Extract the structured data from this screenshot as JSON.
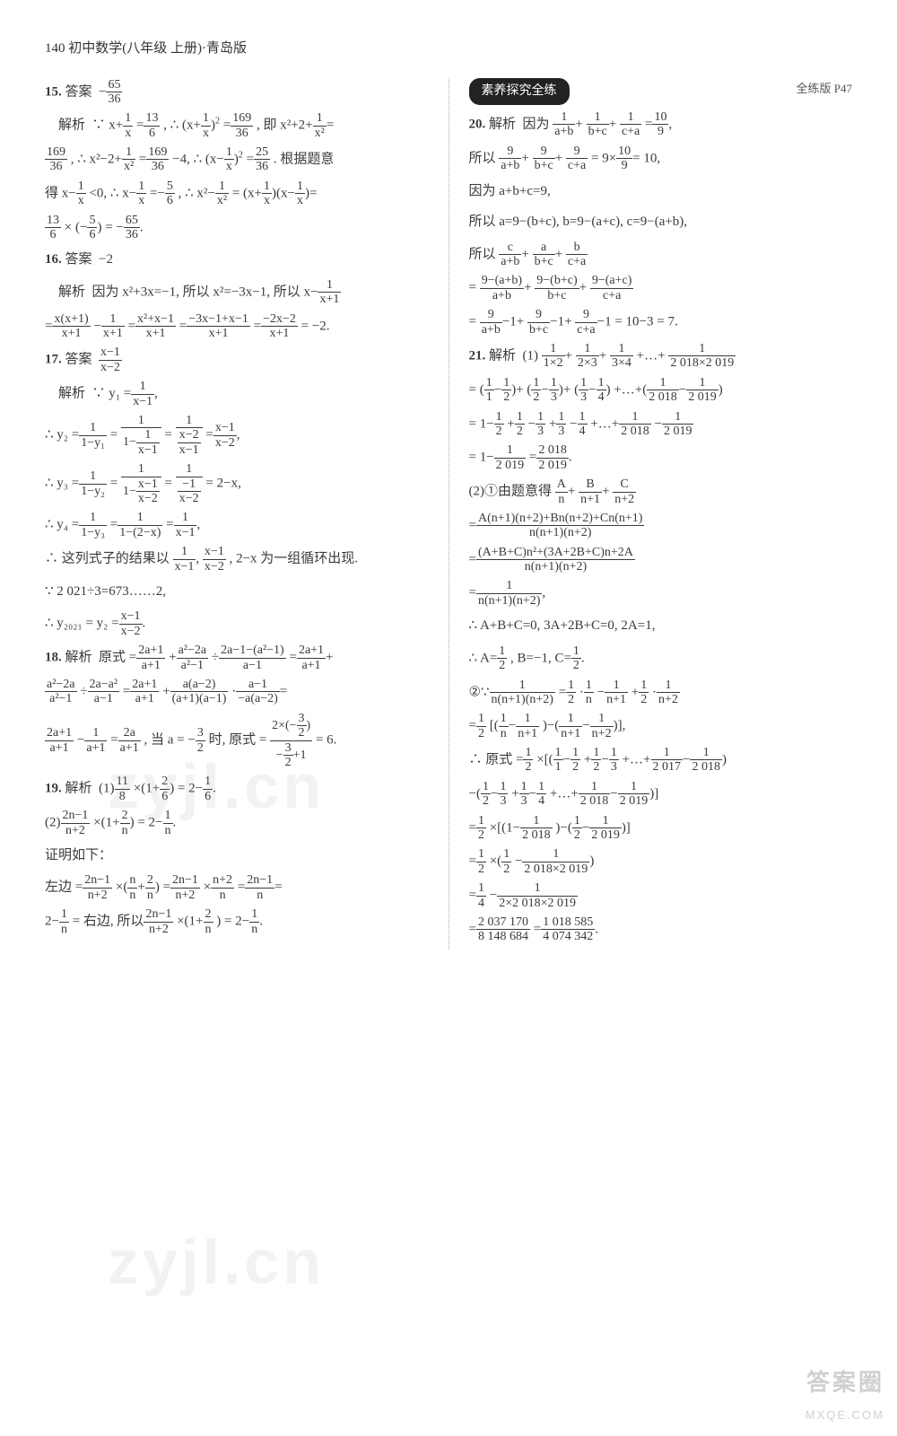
{
  "header": "140 初中数学(八年级 上册)·青岛版",
  "colors": {
    "text": "#3a3a3a",
    "bg": "#ffffff",
    "divider": "#aaaaaa",
    "badge_bg": "#222222",
    "badge_fg": "#ffffff",
    "wm": "rgba(150,150,150,0.12)"
  },
  "left": {
    "q15": {
      "num": "15.",
      "ans_label": "答案",
      "ans_val_n": "65",
      "ans_val_d": "36",
      "ans_sign": "−",
      "jx": "解析",
      "l1a": "∵ x+",
      "l1b": "=",
      "l1c": ", ∴",
      "l1d": "=",
      "l1e": ", 即 x²+2+",
      "f1n": "1",
      "f1d": "x",
      "f2n": "13",
      "f2d": "6",
      "f3a": "(x+",
      "f3b": ")",
      "f3n": "1",
      "f3d": "x",
      "f3sup": "2",
      "f4n": "169",
      "f4d": "36",
      "f5n": "1",
      "f5d": "x²",
      "eq": "=",
      "l2a": ", ∴ x²−2+",
      "l2b": "=",
      "l2c": "−4, ∴",
      "l2d": "=",
      "l2e": ". 根据题意",
      "f6n": "169",
      "f6d": "36",
      "f7n": "1",
      "f7d": "x²",
      "f8n": "169",
      "f8d": "36",
      "f9a": "(x−",
      "f9b": ")",
      "f9n": "1",
      "f9d": "x",
      "f9sup": "2",
      "f10n": "25",
      "f10d": "36",
      "l3a": "得 x−",
      "l3b": "<0, ∴ x−",
      "l3c": "=−",
      "l3d": ", ∴ x²−",
      "l3e": "=",
      "l3f": "=",
      "f11n": "1",
      "f11d": "x",
      "f12n": "1",
      "f12d": "x",
      "f13n": "5",
      "f13d": "6",
      "f14n": "1",
      "f14d": "x²",
      "f15a": "(x+",
      "f15b": ")(x−",
      "f15c": ")",
      "f15n1": "1",
      "f15d1": "x",
      "f15n2": "1",
      "f15d2": "x",
      "l4a": "×",
      "l4b": "= −",
      "l4c": ".",
      "f16n": "13",
      "f16d": "6",
      "f17a": "(−",
      "f17b": ")",
      "f17n": "5",
      "f17d": "6",
      "f18n": "65",
      "f18d": "36"
    },
    "q16": {
      "num": "16.",
      "ans_label": "答案",
      "ans_val": "−2",
      "jx": "解析",
      "l1": "因为 x²+3x=−1, 所以 x²=−3x−1, 所以 x−",
      "f1n": "1",
      "f1d": "x+1",
      "l2a": "=",
      "l2b": "−",
      "l2c": "=",
      "l2d": "=",
      "l2e": "=",
      "l2f": "= −2.",
      "f2n": "x(x+1)",
      "f2d": "x+1",
      "f3n": "1",
      "f3d": "x+1",
      "f4n": "x²+x−1",
      "f4d": "x+1",
      "f5n": "−3x−1+x−1",
      "f5d": "x+1",
      "f6n": "−2x−2",
      "f6d": "x+1"
    },
    "q17": {
      "num": "17.",
      "ans_label": "答案",
      "jx": "解析",
      "ansn": "x−1",
      "ansd": "x−2",
      "l1": "∵ y₁ =",
      "f1n": "1",
      "f1d": "x−1",
      "comma": ",",
      "l2": "∴ y₂ =",
      "f2n": "1",
      "f2d": "1−y₁",
      "eq": "=",
      "f3top": "1",
      "f3b1": "1−",
      "f3n": "1",
      "f3d": "x−1",
      "f4top": "1",
      "f4n": "x−2",
      "f4d": "x−1",
      "f5n": "x−1",
      "f5d": "x−2",
      "l3": "∴ y₃ =",
      "f6n": "1",
      "f6d": "1−y₂",
      "f7top": "1",
      "f7b1": "1−",
      "f7n": "x−1",
      "f7d": "x−2",
      "f8top": "1",
      "f8n": "−1",
      "f8d": "x−2",
      "r3": "= 2−x,",
      "l4": "∴ y₄ =",
      "f9n": "1",
      "f9d": "1−y₃",
      "f10n": "1",
      "f10d": "1−(2−x)",
      "f11n": "1",
      "f11d": "x−1",
      "l5": "∴ 这列式子的结果以",
      "seq": ",",
      "tail": ", 2−x 为一组循环出现.",
      "l6": "∵ 2 021÷3=673……2,",
      "l7": "∴ y₂₀₂₁ = y₂ =",
      "f12n": "x−1",
      "f12d": "x−2",
      "dot": "."
    },
    "q18": {
      "num": "18.",
      "jx": "解析",
      "l1": "原式 =",
      "plus": "+",
      "l2": "÷",
      "l3": "=",
      "l4": "÷",
      "l5a": "·",
      "l5": "=",
      "f1n": "2a+1",
      "f1d": "a+1",
      "f2n": "a²−2a",
      "f2d": "a²−1",
      "f3n": "2a−1−(a²−1)",
      "f3d": "a−1",
      "f4n": "2a+1",
      "f4d": "a+1",
      "f5n": "a²−2a",
      "f5d": "a²−1",
      "f6n": "2a−a²",
      "f6d": "a−1",
      "f7n": "2a+1",
      "f7d": "a+1",
      "f8n": "a(a−2)",
      "f8d": "(a+1)(a−1)",
      "f9n": "a−1",
      "f9d": "−a(a−2)",
      "f10n": "2a+1",
      "f10d": "a+1",
      "f11n": "1",
      "f11d": "a+1",
      "f12n": "2a",
      "f12d": "a+1",
      "mid": ", 当 a = −",
      "fan": "3",
      "fad": "2",
      "mid2": "时, 原式 =",
      "ft1": "2×(−",
      "ftn": "3",
      "ftd": "2",
      "ft2": ")",
      "fbn": "3",
      "fbd": "2",
      "fb1": "−",
      "fb2": "+1",
      "res": "= 6."
    },
    "q19": {
      "num": "19.",
      "jx": "解析",
      "p1": "(1)",
      "f1n": "11",
      "f1d": "8",
      "x": "×",
      "lp": "(1+",
      "f2n": "2",
      "f2d": "6",
      "rp": ")",
      "eq": "= 2−",
      "f3n": "1",
      "f3d": "6",
      "dot": ".",
      "p2": "(2)",
      "f4n": "2n−1",
      "f4d": "n+2",
      "f5n": "2",
      "f5d": "n",
      "eq2": "= 2−",
      "f6n": "1",
      "f6d": "n",
      "prf": "证明如下：",
      "lhs": "左边 =",
      "f7n": "2n−1",
      "f7d": "n+2",
      "m1": "×",
      "lp2": "(",
      "f8n": "n",
      "f8d": "n",
      "pl": "+",
      "f9n": "2",
      "f9d": "n",
      "rp2": ")",
      "e1": "=",
      "f10n": "2n−1",
      "f10d": "n+2",
      "m2": "×",
      "f11n": "n+2",
      "f11d": "n",
      "e2": "=",
      "f12n": "2n−1",
      "f12d": "n",
      "e3": "=",
      "rhs": "2−",
      "f13n": "1",
      "f13d": "n",
      "tail": "= 右边, 所以",
      "f14n": "2n−1",
      "f14d": "n+2",
      "lp3": "×(1+",
      "f15n": "2",
      "f15d": "n",
      "rp3": ") = 2−",
      "f16n": "1",
      "f16d": "n"
    }
  },
  "right": {
    "badge": "素养探究全练",
    "ref": "全练版 P47",
    "q20": {
      "num": "20.",
      "jx": "解析",
      "l1": "因为",
      "f1n": "1",
      "f1d": "a+b",
      "p": "+",
      "f2n": "1",
      "f2d": "b+c",
      "f3n": "1",
      "f3d": "c+a",
      "eq": "=",
      "f4n": "10",
      "f4d": "9",
      "c": ",",
      "l2": "所以",
      "f5n": "9",
      "f5d": "a+b",
      "f6n": "9",
      "f6d": "b+c",
      "f7n": "9",
      "f7d": "c+a",
      "e2": "= 9×",
      "f8n": "10",
      "f8d": "9",
      "r2": "= 10,",
      "l3": "因为 a+b+c=9,",
      "l4": "所以 a=9−(b+c), b=9−(a+c), c=9−(a+b),",
      "l5": "所以",
      "f9n": "c",
      "f9d": "a+b",
      "f10n": "a",
      "f10d": "b+c",
      "f11n": "b",
      "f11d": "c+a",
      "l6": "=",
      "f12n": "9−(a+b)",
      "f12d": "a+b",
      "f13n": "9−(b+c)",
      "f13d": "b+c",
      "f14n": "9−(a+c)",
      "f14d": "c+a",
      "l7": "=",
      "f15n": "9",
      "f15d": "a+b",
      "m1": "−1+",
      "f16n": "9",
      "f16d": "b+c",
      "f17n": "9",
      "f17d": "c+a",
      "r7": "−1 = 10−3 = 7."
    },
    "q21": {
      "num": "21.",
      "jx": "解析",
      "p1": "(1)",
      "f1n": "1",
      "f1d": "1×2",
      "p": "+",
      "f2n": "1",
      "f2d": "2×3",
      "f3n": "1",
      "f3d": "3×4",
      "dots": "+…+",
      "f4n": "1",
      "f4d": "2 018×2 019",
      "l2": "=",
      "g1a": "(",
      "g1n1": "1",
      "g1d1": "1",
      "m": "−",
      "g1n2": "1",
      "g1d2": "2",
      "g1b": ")+",
      "g2n1": "1",
      "g2d1": "2",
      "g2n2": "1",
      "g2d2": "3",
      "g3n1": "1",
      "g3d1": "3",
      "g3n2": "1",
      "g3d2": "4",
      "tail2": "+…+(",
      "g4n1": "1",
      "g4d1": "2 018",
      "g4n2": "1",
      "g4d2": "2 019",
      "g4b": ")",
      "l3": "= 1−",
      "h1n": "1",
      "h1d": "2",
      "pl": "+",
      "h2n": "1",
      "h2d": "2",
      "h3n": "1",
      "h3d": "3",
      "h4n": "1",
      "h4d": "3",
      "h5n": "1",
      "h5d": "4",
      "d3": "+…+",
      "h6n": "1",
      "h6d": "2 018",
      "h7n": "1",
      "h7d": "2 019",
      "l4": "= 1−",
      "r4n": "1",
      "r4d": "2 019",
      "e4": "=",
      "r5n": "2 018",
      "r5d": "2 019",
      "dot": ".",
      "p2": "(2)①由题意得",
      "k1n": "A",
      "k1d": "n",
      "k2n": "B",
      "k2d": "n+1",
      "k3n": "C",
      "k3d": "n+2",
      "l6": "=",
      "bn1": "A(n+1)(n+2)+Bn(n+2)+Cn(n+1)",
      "bd1": "n(n+1)(n+2)",
      "l7": "=",
      "bn2": "(A+B+C)n²+(3A+2B+C)n+2A",
      "bd2": "n(n+1)(n+2)",
      "l8": "=",
      "bn3": "1",
      "bd3": "n(n+1)(n+2)",
      "c8": ",",
      "l9": "∴ A+B+C=0, 3A+2B+C=0, 2A=1,",
      "l10": "∴ A=",
      "an": "1",
      "ad": "2",
      "mid": ", B=−1, C=",
      "cn": "1",
      "cd": "2",
      "dot10": ".",
      "p3": "②∵",
      "o1n": "1",
      "o1d": "n(n+1)(n+2)",
      "e": "=",
      "o2n": "1",
      "o2d": "2",
      "mul": "·",
      "o3n": "1",
      "o3d": "n",
      "mn": "−",
      "o4n": "1",
      "o4d": "n+1",
      "pl2": "+",
      "o5n": "1",
      "o5d": "2",
      "o6n": "1",
      "o6d": "n+2",
      "l12": "=",
      "s1n": "1",
      "s1d": "2",
      "lb": "[(",
      "s2n": "1",
      "s2d": "n",
      "s3n": "1",
      "s3d": "n+1",
      "mid12": ")−(",
      "s4n": "1",
      "s4d": "n+1",
      "s5n": "1",
      "s5d": "n+2",
      "rb": ")],",
      "l13": "∴ 原式 =",
      "t1n": "1",
      "t1d": "2",
      "x13": "×[(",
      "t2n": "1",
      "t2d": "1",
      "t3n": "1",
      "t3d": "2",
      "pl13": "+",
      "t4n": "1",
      "t4d": "2",
      "t5n": "1",
      "t5d": "3",
      "d13": "+…+",
      "t6n": "1",
      "t6d": "2 017",
      "t7n": "1",
      "t7d": "2 018",
      "rb13": ")",
      "l14": "−(",
      "u1n": "1",
      "u1d": "2",
      "u2n": "1",
      "u2d": "3",
      "pl14": "+",
      "u3n": "1",
      "u3d": "3",
      "u4n": "1",
      "u4d": "4",
      "d14": "+…+",
      "u5n": "1",
      "u5d": "2 018",
      "u6n": "1",
      "u6d": "2 019",
      "rb14": ")]",
      "l15": "=",
      "v1n": "1",
      "v1d": "2",
      "x15": "×[(1−",
      "v2n": "1",
      "v2d": "2 018",
      "m15": ")−(",
      "v3n": "1",
      "v3d": "2",
      "v4n": "1",
      "v4d": "2 019",
      "rb15": ")]",
      "l16": "=",
      "w1n": "1",
      "w1d": "2",
      "x16": "×(",
      "w2n": "1",
      "w2d": "2",
      "mn16": "−",
      "w3n": "1",
      "w3d": "2 018×2 019",
      "rb16": ")",
      "l17": "=",
      "y1n": "1",
      "y1d": "4",
      "mn17": "−",
      "y2n": "1",
      "y2d": "2×2 018×2 019",
      "l18": "=",
      "z1n": "2 037 170",
      "z1d": "8 148 684",
      "e18": "=",
      "z2n": "1 018 585",
      "z2d": "4 074 342",
      "dot18": "."
    }
  },
  "watermark": "zyjl.cn",
  "corner_big": "答案圈",
  "corner_sm": "MXQE.COM"
}
